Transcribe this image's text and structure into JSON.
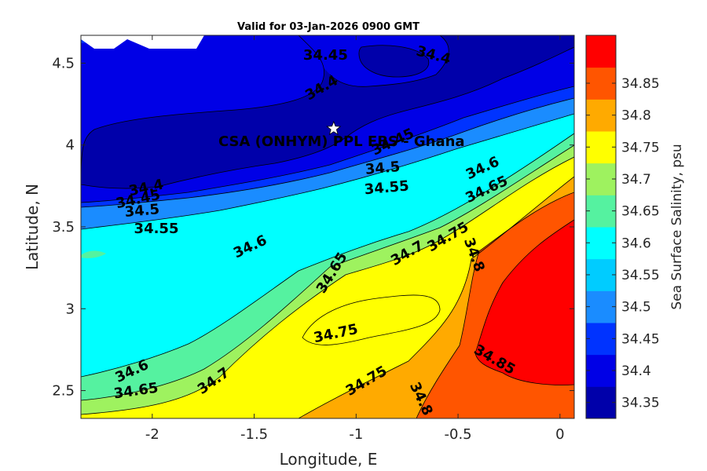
{
  "chart_data": {
    "type": "filled-contour",
    "title": "Valid for 03-Jan-2026 0900 GMT",
    "xlabel": "Longitude, E",
    "ylabel": "Latitude, N",
    "xlim": [
      -2.35,
      0.07
    ],
    "ylim": [
      2.33,
      4.67
    ],
    "x_ticks": [
      -2,
      -1.5,
      -1,
      -0.5,
      0
    ],
    "x_tick_labels": [
      "-2",
      "-1.5",
      "-1",
      "-0.5",
      "0"
    ],
    "y_ticks": [
      2.5,
      3,
      3.5,
      4,
      4.5
    ],
    "y_tick_labels": [
      "2.5",
      "3",
      "3.5",
      "4",
      "4.5"
    ],
    "colorbar": {
      "label": "Sea Surface Salinity, psu",
      "levels": [
        34.35,
        34.4,
        34.45,
        34.5,
        34.55,
        34.6,
        34.65,
        34.7,
        34.75,
        34.8,
        34.85
      ],
      "tick_labels": [
        "34.35",
        "34.4",
        "34.45",
        "34.5",
        "34.55",
        "34.6",
        "34.65",
        "34.7",
        "34.75",
        "34.8",
        "34.85"
      ],
      "colors": [
        "#0000aa",
        "#0000e6",
        "#0033ff",
        "#1a8cff",
        "#00ccff",
        "#00ffff",
        "#55f2a0",
        "#9ef25f",
        "#ffff00",
        "#ffaa00",
        "#ff5500",
        "#ff0000"
      ]
    },
    "contour_labels": [
      {
        "text": "34.45",
        "lon": -1.15,
        "lat": 4.55,
        "angle": 0
      },
      {
        "text": "34.4",
        "lon": -0.62,
        "lat": 4.55,
        "angle": 15
      },
      {
        "text": "34.4",
        "lon": -1.17,
        "lat": 4.35,
        "angle": -30
      },
      {
        "text": "34.45",
        "lon": -0.82,
        "lat": 4.02,
        "angle": -25
      },
      {
        "text": "34.5",
        "lon": -0.87,
        "lat": 3.86,
        "angle": -5
      },
      {
        "text": "34.55",
        "lon": -0.85,
        "lat": 3.74,
        "angle": -5
      },
      {
        "text": "34.6",
        "lon": -0.38,
        "lat": 3.86,
        "angle": -25
      },
      {
        "text": "34.65",
        "lon": -0.36,
        "lat": 3.73,
        "angle": -25
      },
      {
        "text": "34.4",
        "lon": -2.03,
        "lat": 3.74,
        "angle": -12
      },
      {
        "text": "34.45",
        "lon": -2.07,
        "lat": 3.67,
        "angle": -12
      },
      {
        "text": "34.5",
        "lon": -2.05,
        "lat": 3.6,
        "angle": -5
      },
      {
        "text": "34.55",
        "lon": -1.98,
        "lat": 3.49,
        "angle": 0
      },
      {
        "text": "34.6",
        "lon": -1.52,
        "lat": 3.38,
        "angle": -25
      },
      {
        "text": "34.65",
        "lon": -1.12,
        "lat": 3.22,
        "angle": -58
      },
      {
        "text": "34.7",
        "lon": -0.75,
        "lat": 3.34,
        "angle": -30
      },
      {
        "text": "34.75",
        "lon": -0.55,
        "lat": 3.44,
        "angle": -30
      },
      {
        "text": "34.8",
        "lon": -0.42,
        "lat": 3.33,
        "angle": 70
      },
      {
        "text": "34.75",
        "lon": -1.1,
        "lat": 2.85,
        "angle": -12
      },
      {
        "text": "34.75",
        "lon": -0.95,
        "lat": 2.56,
        "angle": -30
      },
      {
        "text": "34.8",
        "lon": -0.68,
        "lat": 2.45,
        "angle": 65
      },
      {
        "text": "34.85",
        "lon": -0.32,
        "lat": 2.69,
        "angle": 30
      },
      {
        "text": "34.6",
        "lon": -2.1,
        "lat": 2.62,
        "angle": -25
      },
      {
        "text": "34.65",
        "lon": -2.08,
        "lat": 2.5,
        "angle": -8
      },
      {
        "text": "34.7",
        "lon": -1.7,
        "lat": 2.56,
        "angle": -35
      }
    ],
    "annotations": [
      {
        "text": "CSA (ONHYM) PPL EBS  - Ghana",
        "lon": -1.11,
        "lat": 4.1,
        "marker": "star"
      }
    ]
  }
}
